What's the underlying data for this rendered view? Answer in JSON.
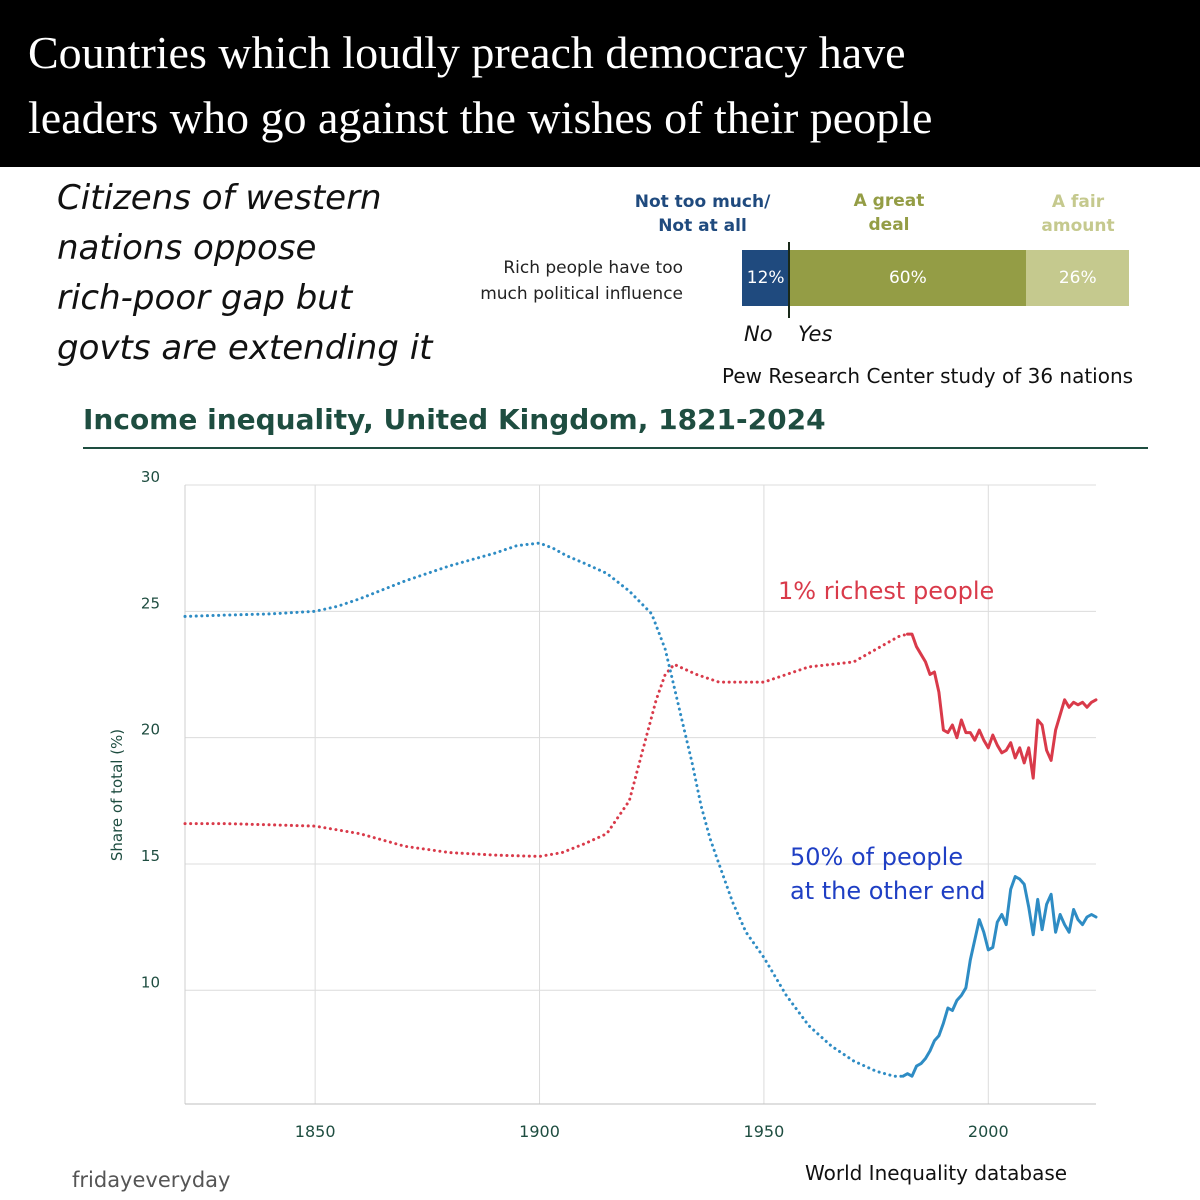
{
  "banner": {
    "line1": "Countries which loudly preach democracy have",
    "line2": "leaders who go against the wishes of their people"
  },
  "note": {
    "line1": "Citizens of western",
    "line2": "nations oppose",
    "line3": "rich-poor gap but",
    "line4": "govts are extending it"
  },
  "colors": {
    "banner_bg": "#000000",
    "navy": "#1f4a7e",
    "olive": "#949d45",
    "light_olive": "#c5c98e",
    "chart_title": "#1e4d40",
    "top1_series": "#d93a4a",
    "bottom50_series": "#2e8cc4",
    "bottom50_label": "#1f3fc4",
    "grid": "#dcdcdc"
  },
  "chart_data": [
    {
      "type": "bar",
      "orientation": "horizontal",
      "stacked": true,
      "categories": [
        "Rich people have too much political influence"
      ],
      "category_lines": [
        "Rich people have too",
        "much political influence"
      ],
      "segment_headers": [
        {
          "lines": [
            "Not too much/",
            "Not at all"
          ],
          "color": "#1f4a7e"
        },
        {
          "lines": [
            "A great",
            "deal"
          ],
          "color": "#949d45"
        },
        {
          "lines": [
            "A fair",
            "amount"
          ],
          "color": "#c5c98e"
        }
      ],
      "series": [
        {
          "name": "Not too much/ Not at all",
          "values": [
            12
          ],
          "label": "12%",
          "color": "#1f4a7e"
        },
        {
          "name": "A great deal",
          "values": [
            60
          ],
          "label": "60%",
          "color": "#949d45"
        },
        {
          "name": "A fair amount",
          "values": [
            26
          ],
          "label": "26%",
          "color": "#c5c98e"
        }
      ],
      "annotations": {
        "no": "No",
        "yes": "Yes"
      },
      "source": "Pew Research Center study of 36 nations"
    },
    {
      "type": "line",
      "title": "Income inequality, United Kingdom, 1821-2024",
      "xlabel": "",
      "ylabel": "Share of total (%)",
      "xlim": [
        1821,
        2024
      ],
      "ylim": [
        5.5,
        30
      ],
      "xticks": [
        1850,
        1900,
        1950,
        2000
      ],
      "yticks": [
        10,
        15,
        20,
        25,
        30
      ],
      "grid": true,
      "source": "World Inequality database",
      "series": [
        {
          "name": "1% richest people",
          "color": "#d93a4a",
          "dotted": {
            "x": [
              1821,
              1830,
              1840,
              1850,
              1860,
              1870,
              1880,
              1890,
              1900,
              1905,
              1910,
              1915,
              1920,
              1923,
              1926,
              1928,
              1930,
              1935,
              1940,
              1945,
              1950,
              1955,
              1960,
              1965,
              1970,
              1975,
              1980,
              1982
            ],
            "y": [
              16.6,
              16.6,
              16.55,
              16.5,
              16.2,
              15.7,
              15.45,
              15.35,
              15.3,
              15.45,
              15.8,
              16.2,
              17.5,
              19.5,
              21.5,
              22.5,
              22.9,
              22.5,
              22.2,
              22.2,
              22.2,
              22.5,
              22.8,
              22.9,
              23.0,
              23.5,
              24.0,
              24.1
            ]
          },
          "solid": {
            "x": [
              1982,
              1983,
              1984,
              1985,
              1986,
              1987,
              1988,
              1989,
              1990,
              1991,
              1992,
              1993,
              1994,
              1995,
              1996,
              1997,
              1998,
              1999,
              2000,
              2001,
              2002,
              2003,
              2004,
              2005,
              2006,
              2007,
              2008,
              2009,
              2010,
              2011,
              2012,
              2013,
              2014,
              2015,
              2016,
              2017,
              2018,
              2019,
              2020,
              2021,
              2022,
              2023,
              2024
            ],
            "y": [
              24.1,
              24.1,
              23.6,
              23.3,
              23.0,
              22.5,
              22.6,
              21.8,
              20.3,
              20.2,
              20.5,
              20.0,
              20.7,
              20.2,
              20.2,
              19.9,
              20.3,
              19.9,
              19.6,
              20.1,
              19.7,
              19.4,
              19.5,
              19.8,
              19.2,
              19.6,
              19.0,
              19.6,
              18.4,
              20.7,
              20.5,
              19.5,
              19.1,
              20.3,
              20.9,
              21.5,
              21.2,
              21.4,
              21.3,
              21.4,
              21.2,
              21.4,
              21.5
            ]
          }
        },
        {
          "name": "50% of people at the other end",
          "label_lines": [
            "50% of people",
            "at the other end"
          ],
          "color": "#2e8cc4",
          "dotted": {
            "x": [
              1821,
              1830,
              1840,
              1850,
              1855,
              1860,
              1870,
              1880,
              1890,
              1895,
              1900,
              1903,
              1906,
              1910,
              1915,
              1920,
              1925,
              1928,
              1930,
              1932,
              1934,
              1936,
              1938,
              1940,
              1943,
              1946,
              1950,
              1955,
              1960,
              1965,
              1970,
              1975,
              1979,
              1981
            ],
            "y": [
              24.8,
              24.85,
              24.9,
              25.0,
              25.2,
              25.5,
              26.2,
              26.8,
              27.3,
              27.6,
              27.7,
              27.5,
              27.2,
              26.9,
              26.5,
              25.8,
              24.9,
              23.5,
              22.0,
              20.5,
              19.0,
              17.3,
              16.0,
              15.0,
              13.5,
              12.3,
              11.3,
              9.8,
              8.6,
              7.8,
              7.2,
              6.8,
              6.6,
              6.6
            ]
          },
          "solid": {
            "x": [
              1981,
              1982,
              1983,
              1984,
              1985,
              1986,
              1987,
              1988,
              1989,
              1990,
              1991,
              1992,
              1993,
              1994,
              1995,
              1996,
              1997,
              1998,
              1999,
              2000,
              2001,
              2002,
              2003,
              2004,
              2005,
              2006,
              2007,
              2008,
              2009,
              2010,
              2011,
              2012,
              2013,
              2014,
              2015,
              2016,
              2017,
              2018,
              2019,
              2020,
              2021,
              2022,
              2023,
              2024
            ],
            "y": [
              6.6,
              6.7,
              6.6,
              7.0,
              7.1,
              7.3,
              7.6,
              8.0,
              8.2,
              8.7,
              9.3,
              9.2,
              9.6,
              9.8,
              10.1,
              11.2,
              12.0,
              12.8,
              12.3,
              11.6,
              11.7,
              12.7,
              13.0,
              12.6,
              14.0,
              14.5,
              14.4,
              14.2,
              13.3,
              12.2,
              13.6,
              12.4,
              13.4,
              13.8,
              12.3,
              13.0,
              12.6,
              12.3,
              13.2,
              12.8,
              12.6,
              12.9,
              13.0,
              12.9
            ]
          }
        }
      ]
    }
  ],
  "watermark": "fridayeveryday"
}
